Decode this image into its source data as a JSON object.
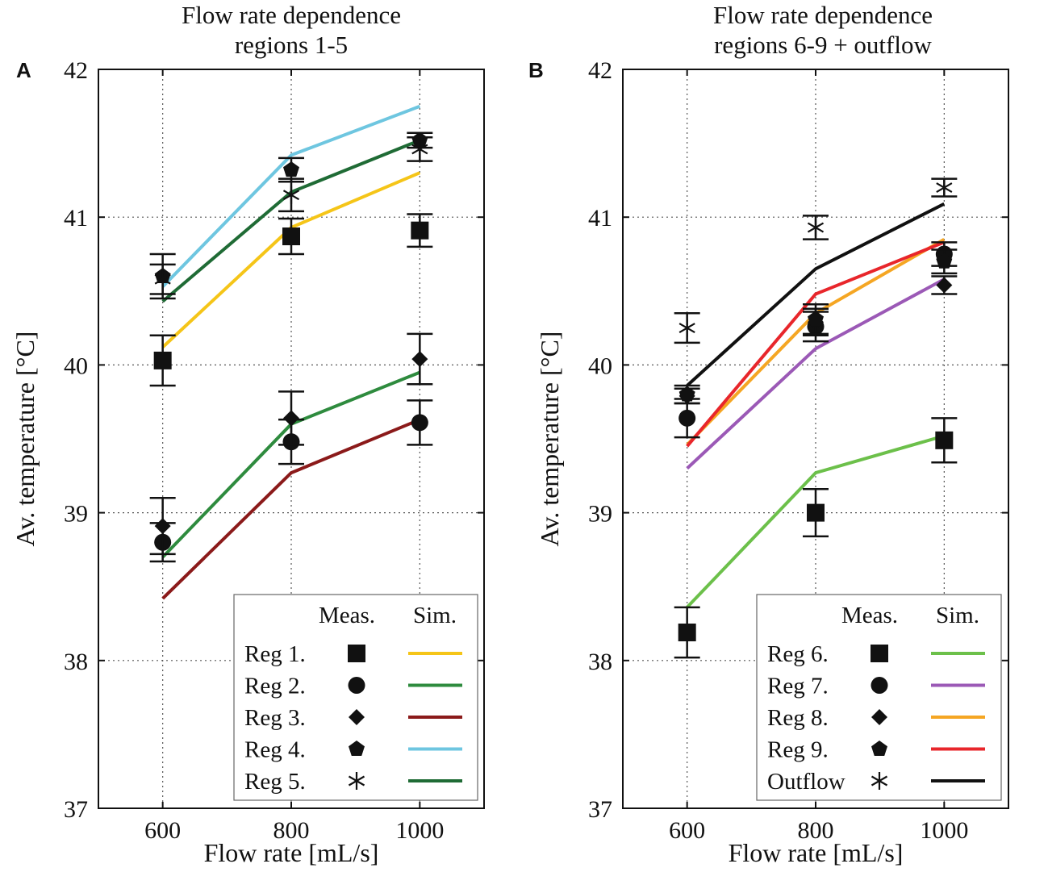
{
  "chart_data": [
    {
      "type": "line",
      "panel_letter": "A",
      "title_lines": [
        "Flow rate dependence",
        "regions 1-5"
      ],
      "xlabel": "Flow rate [mL/s]",
      "ylabel": "Av. temperature [°C]",
      "xlim": [
        500,
        1100
      ],
      "ylim": [
        37,
        42
      ],
      "xticks": [
        600,
        800,
        1000
      ],
      "yticks": [
        37,
        38,
        39,
        40,
        41,
        42
      ],
      "grid": true,
      "legend_position": "bottom-right",
      "legend_headers": {
        "measured": "Meas.",
        "simulated": "Sim."
      },
      "series": [
        {
          "name": "Reg 1.",
          "marker": "square",
          "color": "#f5c518",
          "x": [
            600,
            800,
            1000
          ],
          "measured": [
            40.03,
            40.87,
            40.91
          ],
          "error": [
            0.17,
            0.12,
            0.11
          ],
          "simulated": [
            40.12,
            40.93,
            41.3
          ]
        },
        {
          "name": "Reg 2.",
          "marker": "circle",
          "color": "#2e8b3e",
          "x": [
            600,
            800,
            1000
          ],
          "measured": [
            38.8,
            39.48,
            39.61
          ],
          "error": [
            0.13,
            0.15,
            0.15
          ],
          "simulated": [
            38.7,
            39.6,
            39.95
          ]
        },
        {
          "name": "Reg 3.",
          "marker": "diamond",
          "color": "#8b1a1a",
          "x": [
            600,
            800,
            1000
          ],
          "measured": [
            38.91,
            39.64,
            40.04
          ],
          "error": [
            0.19,
            0.18,
            0.17
          ],
          "simulated": [
            38.42,
            39.27,
            39.63
          ]
        },
        {
          "name": "Reg 4.",
          "marker": "pentagon",
          "color": "#6ec6e0",
          "x": [
            600,
            800,
            1000
          ],
          "measured": [
            40.6,
            41.32,
            41.52
          ],
          "error": [
            0.15,
            0.08,
            0.05
          ],
          "simulated": [
            40.53,
            41.42,
            41.75
          ]
        },
        {
          "name": "Reg 5.",
          "marker": "asterisk",
          "color": "#1f6b35",
          "x": [
            600,
            800,
            1000
          ],
          "measured": [
            40.58,
            41.15,
            41.46
          ],
          "error": [
            0.1,
            0.11,
            0.08
          ],
          "simulated": [
            40.43,
            41.17,
            41.52
          ]
        }
      ]
    },
    {
      "type": "line",
      "panel_letter": "B",
      "title_lines": [
        "Flow rate dependence",
        "regions 6-9 + outflow"
      ],
      "xlabel": "Flow rate [mL/s]",
      "ylabel": "Av. temperature [°C]",
      "xlim": [
        500,
        1100
      ],
      "ylim": [
        37,
        42
      ],
      "xticks": [
        600,
        800,
        1000
      ],
      "yticks": [
        37,
        38,
        39,
        40,
        41,
        42
      ],
      "grid": true,
      "legend_position": "bottom-right",
      "legend_headers": {
        "measured": "Meas.",
        "simulated": "Sim."
      },
      "series": [
        {
          "name": "Reg 6.",
          "marker": "square",
          "color": "#6cc04a",
          "x": [
            600,
            800,
            1000
          ],
          "measured": [
            38.19,
            39.0,
            39.49
          ],
          "error": [
            0.17,
            0.16,
            0.15
          ],
          "simulated": [
            38.36,
            39.27,
            39.52
          ]
        },
        {
          "name": "Reg 7.",
          "marker": "circle",
          "color": "#9b59b6",
          "x": [
            600,
            800,
            1000
          ],
          "measured": [
            39.64,
            40.26,
            40.75
          ],
          "error": [
            0.13,
            0.1,
            0.08
          ],
          "simulated": [
            39.3,
            40.11,
            40.58
          ]
        },
        {
          "name": "Reg 8.",
          "marker": "diamond",
          "color": "#f5a623",
          "x": [
            600,
            800,
            1000
          ],
          "measured": [
            39.79,
            40.29,
            40.54
          ],
          "error": [
            0.05,
            0.09,
            0.06
          ],
          "simulated": [
            39.46,
            40.35,
            40.85
          ]
        },
        {
          "name": "Reg 9.",
          "marker": "pentagon",
          "color": "#e8262b",
          "x": [
            600,
            800,
            1000
          ],
          "measured": [
            39.8,
            40.31,
            40.7
          ],
          "error": [
            0.06,
            0.1,
            0.08
          ],
          "simulated": [
            39.45,
            40.48,
            40.83
          ]
        },
        {
          "name": "Outflow",
          "marker": "asterisk",
          "color": "#111111",
          "x": [
            600,
            800,
            1000
          ],
          "measured": [
            40.25,
            40.93,
            41.2
          ],
          "error": [
            0.1,
            0.08,
            0.06
          ],
          "simulated": [
            39.86,
            40.65,
            41.09
          ]
        }
      ]
    }
  ]
}
